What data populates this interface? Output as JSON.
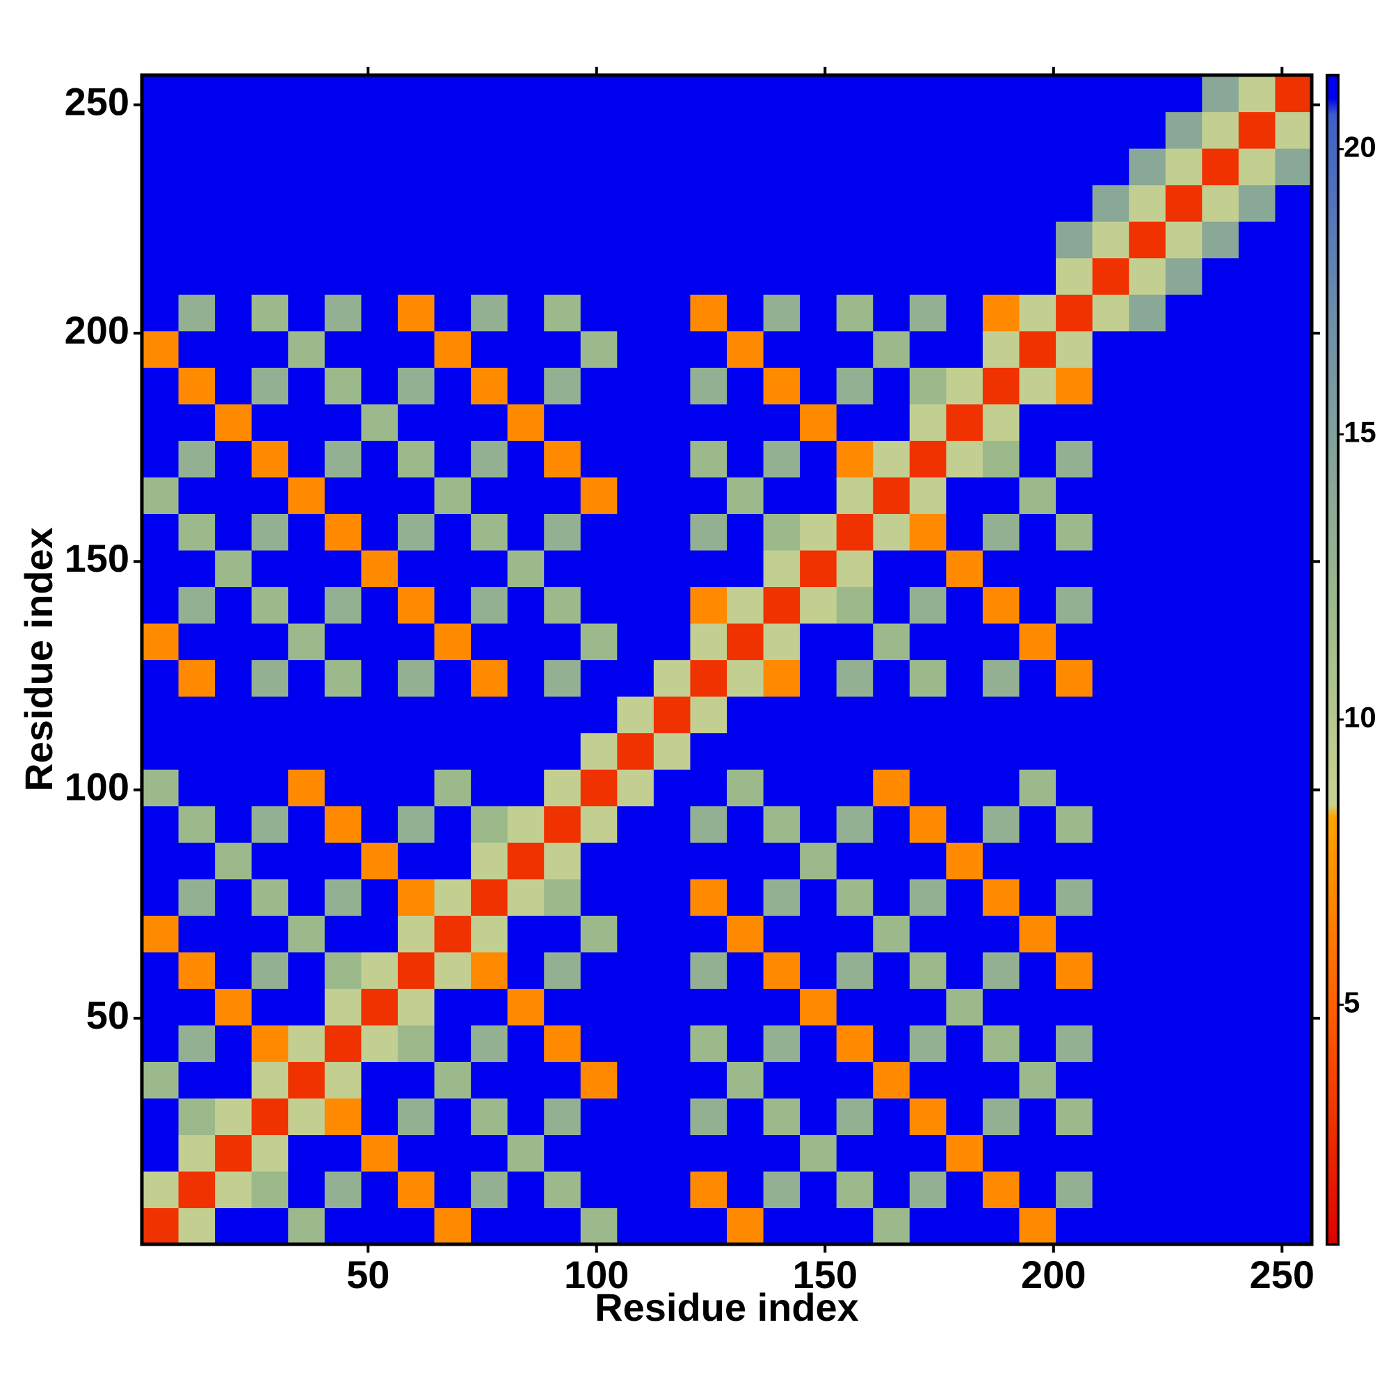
{
  "chart_data": {
    "type": "heatmap",
    "xlabel": "Residue index",
    "ylabel": "Residue index",
    "x": [
      4.5,
      12.5,
      20.5,
      28.5,
      36.5,
      44.5,
      52.5,
      60.5,
      68.5,
      76.5,
      84.5,
      92.5,
      100.5,
      108.5,
      116.5,
      124.5,
      132.5,
      140.5,
      148.5,
      156.5,
      164.5,
      172.5,
      180.5,
      188.5,
      196.5,
      204.5,
      212.5,
      220.5,
      228.5,
      236.5,
      244.5,
      252.5
    ],
    "y": [
      4.5,
      12.5,
      20.5,
      28.5,
      36.5,
      44.5,
      52.5,
      60.5,
      68.5,
      76.5,
      84.5,
      92.5,
      100.5,
      108.5,
      116.5,
      124.5,
      132.5,
      140.5,
      148.5,
      156.5,
      164.5,
      172.5,
      180.5,
      188.5,
      196.5,
      204.5,
      212.5,
      220.5,
      228.5,
      236.5,
      244.5,
      252.5
    ],
    "z": [
      [
        3,
        9,
        21,
        21,
        12,
        21,
        21,
        21,
        7,
        21,
        21,
        21,
        12,
        21,
        21,
        21,
        7,
        21,
        21,
        21,
        12,
        21,
        21,
        21,
        7,
        21,
        21,
        21,
        21,
        21,
        21,
        21
      ],
      [
        9,
        3,
        9,
        12,
        21,
        13,
        21,
        7,
        21,
        13,
        21,
        12,
        21,
        21,
        21,
        7,
        21,
        13,
        21,
        12,
        21,
        13,
        21,
        7,
        21,
        13,
        21,
        21,
        21,
        21,
        21,
        21
      ],
      [
        21,
        9,
        3,
        9,
        21,
        21,
        7,
        21,
        21,
        21,
        12,
        21,
        21,
        21,
        21,
        21,
        21,
        21,
        12,
        21,
        21,
        21,
        7,
        21,
        21,
        21,
        21,
        21,
        21,
        21,
        21,
        21
      ],
      [
        21,
        12,
        9,
        3,
        9,
        7,
        21,
        13,
        21,
        12,
        21,
        13,
        21,
        21,
        21,
        13,
        21,
        12,
        21,
        13,
        21,
        7,
        21,
        13,
        21,
        12,
        21,
        21,
        21,
        21,
        21,
        21
      ],
      [
        12,
        21,
        21,
        9,
        3,
        9,
        21,
        21,
        12,
        21,
        21,
        21,
        7,
        21,
        21,
        21,
        12,
        21,
        21,
        21,
        7,
        21,
        21,
        21,
        12,
        21,
        21,
        21,
        21,
        21,
        21,
        21
      ],
      [
        21,
        13,
        21,
        7,
        9,
        3,
        9,
        12,
        21,
        13,
        21,
        7,
        21,
        21,
        21,
        12,
        21,
        13,
        21,
        7,
        21,
        13,
        21,
        12,
        21,
        13,
        21,
        21,
        21,
        21,
        21,
        21
      ],
      [
        21,
        21,
        7,
        21,
        21,
        9,
        3,
        9,
        21,
        21,
        7,
        21,
        21,
        21,
        21,
        21,
        21,
        21,
        7,
        21,
        21,
        21,
        12,
        21,
        21,
        21,
        21,
        21,
        21,
        21,
        21,
        21
      ],
      [
        21,
        7,
        21,
        13,
        21,
        12,
        9,
        3,
        9,
        7,
        21,
        13,
        21,
        21,
        21,
        13,
        21,
        7,
        21,
        13,
        21,
        12,
        21,
        13,
        21,
        7,
        21,
        21,
        21,
        21,
        21,
        21
      ],
      [
        7,
        21,
        21,
        21,
        12,
        21,
        21,
        9,
        3,
        9,
        21,
        21,
        12,
        21,
        21,
        21,
        7,
        21,
        21,
        21,
        12,
        21,
        21,
        21,
        7,
        21,
        21,
        21,
        21,
        21,
        21,
        21
      ],
      [
        21,
        13,
        21,
        12,
        21,
        13,
        21,
        7,
        9,
        3,
        9,
        12,
        21,
        21,
        21,
        7,
        21,
        13,
        21,
        12,
        21,
        13,
        21,
        7,
        21,
        13,
        21,
        21,
        21,
        21,
        21,
        21
      ],
      [
        21,
        21,
        12,
        21,
        21,
        21,
        7,
        21,
        21,
        9,
        3,
        9,
        21,
        21,
        21,
        21,
        21,
        21,
        12,
        21,
        21,
        21,
        7,
        21,
        21,
        21,
        21,
        21,
        21,
        21,
        21,
        21
      ],
      [
        21,
        12,
        21,
        13,
        21,
        7,
        21,
        13,
        21,
        12,
        9,
        3,
        9,
        21,
        21,
        13,
        21,
        12,
        21,
        13,
        21,
        7,
        21,
        13,
        21,
        12,
        21,
        21,
        21,
        21,
        21,
        21
      ],
      [
        12,
        21,
        21,
        21,
        7,
        21,
        21,
        21,
        12,
        21,
        21,
        9,
        3,
        9,
        21,
        21,
        12,
        21,
        21,
        21,
        7,
        21,
        21,
        21,
        12,
        21,
        21,
        21,
        21,
        21,
        21,
        21
      ],
      [
        21,
        21,
        21,
        21,
        21,
        21,
        21,
        21,
        21,
        21,
        21,
        21,
        9,
        3,
        9,
        21,
        21,
        21,
        21,
        21,
        21,
        21,
        21,
        21,
        21,
        21,
        21,
        21,
        21,
        21,
        21,
        21
      ],
      [
        21,
        21,
        21,
        21,
        21,
        21,
        21,
        21,
        21,
        21,
        21,
        21,
        21,
        9,
        3,
        9,
        21,
        21,
        21,
        21,
        21,
        21,
        21,
        21,
        21,
        21,
        21,
        21,
        21,
        21,
        21,
        21
      ],
      [
        21,
        7,
        21,
        13,
        21,
        12,
        21,
        13,
        21,
        7,
        21,
        13,
        21,
        21,
        9,
        3,
        9,
        7,
        21,
        13,
        21,
        12,
        21,
        13,
        21,
        7,
        21,
        21,
        21,
        21,
        21,
        21
      ],
      [
        7,
        21,
        21,
        21,
        12,
        21,
        21,
        21,
        7,
        21,
        21,
        21,
        12,
        21,
        21,
        9,
        3,
        9,
        21,
        21,
        12,
        21,
        21,
        21,
        7,
        21,
        21,
        21,
        21,
        21,
        21,
        21
      ],
      [
        21,
        13,
        21,
        12,
        21,
        13,
        21,
        7,
        21,
        13,
        21,
        12,
        21,
        21,
        21,
        7,
        9,
        3,
        9,
        12,
        21,
        13,
        21,
        7,
        21,
        13,
        21,
        21,
        21,
        21,
        21,
        21
      ],
      [
        21,
        21,
        12,
        21,
        21,
        21,
        7,
        21,
        21,
        21,
        12,
        21,
        21,
        21,
        21,
        21,
        21,
        9,
        3,
        9,
        21,
        21,
        7,
        21,
        21,
        21,
        21,
        21,
        21,
        21,
        21,
        21
      ],
      [
        21,
        12,
        21,
        13,
        21,
        7,
        21,
        13,
        21,
        12,
        21,
        13,
        21,
        21,
        21,
        13,
        21,
        12,
        9,
        3,
        9,
        7,
        21,
        13,
        21,
        12,
        21,
        21,
        21,
        21,
        21,
        21
      ],
      [
        12,
        21,
        21,
        21,
        7,
        21,
        21,
        21,
        12,
        21,
        21,
        21,
        7,
        21,
        21,
        21,
        12,
        21,
        21,
        9,
        3,
        9,
        21,
        21,
        12,
        21,
        21,
        21,
        21,
        21,
        21,
        21
      ],
      [
        21,
        13,
        21,
        7,
        21,
        13,
        21,
        12,
        21,
        13,
        21,
        7,
        21,
        21,
        21,
        12,
        21,
        13,
        21,
        7,
        9,
        3,
        9,
        12,
        21,
        13,
        21,
        21,
        21,
        21,
        21,
        21
      ],
      [
        21,
        21,
        7,
        21,
        21,
        21,
        12,
        21,
        21,
        21,
        7,
        21,
        21,
        21,
        21,
        21,
        21,
        21,
        7,
        21,
        21,
        9,
        3,
        9,
        21,
        21,
        21,
        21,
        21,
        21,
        21,
        21
      ],
      [
        21,
        7,
        21,
        13,
        21,
        12,
        21,
        13,
        21,
        7,
        21,
        13,
        21,
        21,
        21,
        13,
        21,
        7,
        21,
        13,
        21,
        12,
        9,
        3,
        9,
        7,
        21,
        21,
        21,
        21,
        21,
        21
      ],
      [
        7,
        21,
        21,
        21,
        12,
        21,
        21,
        21,
        7,
        21,
        21,
        21,
        12,
        21,
        21,
        21,
        7,
        21,
        21,
        21,
        12,
        21,
        21,
        9,
        3,
        9,
        21,
        21,
        21,
        21,
        21,
        21
      ],
      [
        21,
        13,
        21,
        12,
        21,
        13,
        21,
        7,
        21,
        13,
        21,
        12,
        21,
        21,
        21,
        7,
        21,
        13,
        21,
        12,
        21,
        13,
        21,
        7,
        9,
        3,
        9,
        14,
        21,
        21,
        21,
        21
      ],
      [
        21,
        21,
        21,
        21,
        21,
        21,
        21,
        21,
        21,
        21,
        21,
        21,
        21,
        21,
        21,
        21,
        21,
        21,
        21,
        21,
        21,
        21,
        21,
        21,
        21,
        9,
        3,
        9,
        14,
        21,
        21,
        21
      ],
      [
        21,
        21,
        21,
        21,
        21,
        21,
        21,
        21,
        21,
        21,
        21,
        21,
        21,
        21,
        21,
        21,
        21,
        21,
        21,
        21,
        21,
        21,
        21,
        21,
        21,
        14,
        9,
        3,
        9,
        14,
        21,
        21
      ],
      [
        21,
        21,
        21,
        21,
        21,
        21,
        21,
        21,
        21,
        21,
        21,
        21,
        21,
        21,
        21,
        21,
        21,
        21,
        21,
        21,
        21,
        21,
        21,
        21,
        21,
        21,
        14,
        9,
        3,
        9,
        14,
        21
      ],
      [
        21,
        21,
        21,
        21,
        21,
        21,
        21,
        21,
        21,
        21,
        21,
        21,
        21,
        21,
        21,
        21,
        21,
        21,
        21,
        21,
        21,
        21,
        21,
        21,
        21,
        21,
        21,
        14,
        9,
        3,
        9,
        14
      ],
      [
        21,
        21,
        21,
        21,
        21,
        21,
        21,
        21,
        21,
        21,
        21,
        21,
        21,
        21,
        21,
        21,
        21,
        21,
        21,
        21,
        21,
        21,
        21,
        21,
        21,
        21,
        21,
        21,
        14,
        9,
        3,
        9
      ],
      [
        21,
        21,
        21,
        21,
        21,
        21,
        21,
        21,
        21,
        21,
        21,
        21,
        21,
        21,
        21,
        21,
        21,
        21,
        21,
        21,
        21,
        21,
        21,
        21,
        21,
        21,
        21,
        21,
        21,
        14,
        9,
        3
      ]
    ],
    "xlim": [
      0.5,
      256.5
    ],
    "ylim": [
      0.5,
      256.5
    ],
    "xticks": [
      50,
      100,
      150,
      200,
      250
    ],
    "yticks": [
      50,
      100,
      150,
      200,
      250
    ],
    "colorbar": {
      "lim": [
        0.8,
        21.3
      ],
      "ticks": [
        5,
        10,
        15,
        20
      ]
    },
    "colorscale": [
      [
        0.8,
        "#e00000"
      ],
      [
        5,
        "#ff6000"
      ],
      [
        8.3,
        "#ffa500"
      ],
      [
        8.5,
        "#c9d292"
      ],
      [
        12,
        "#9cb98c"
      ],
      [
        17,
        "#6f8fa8"
      ],
      [
        20.6,
        "#3f5fc8"
      ],
      [
        20.9,
        "#0000f0"
      ]
    ]
  }
}
